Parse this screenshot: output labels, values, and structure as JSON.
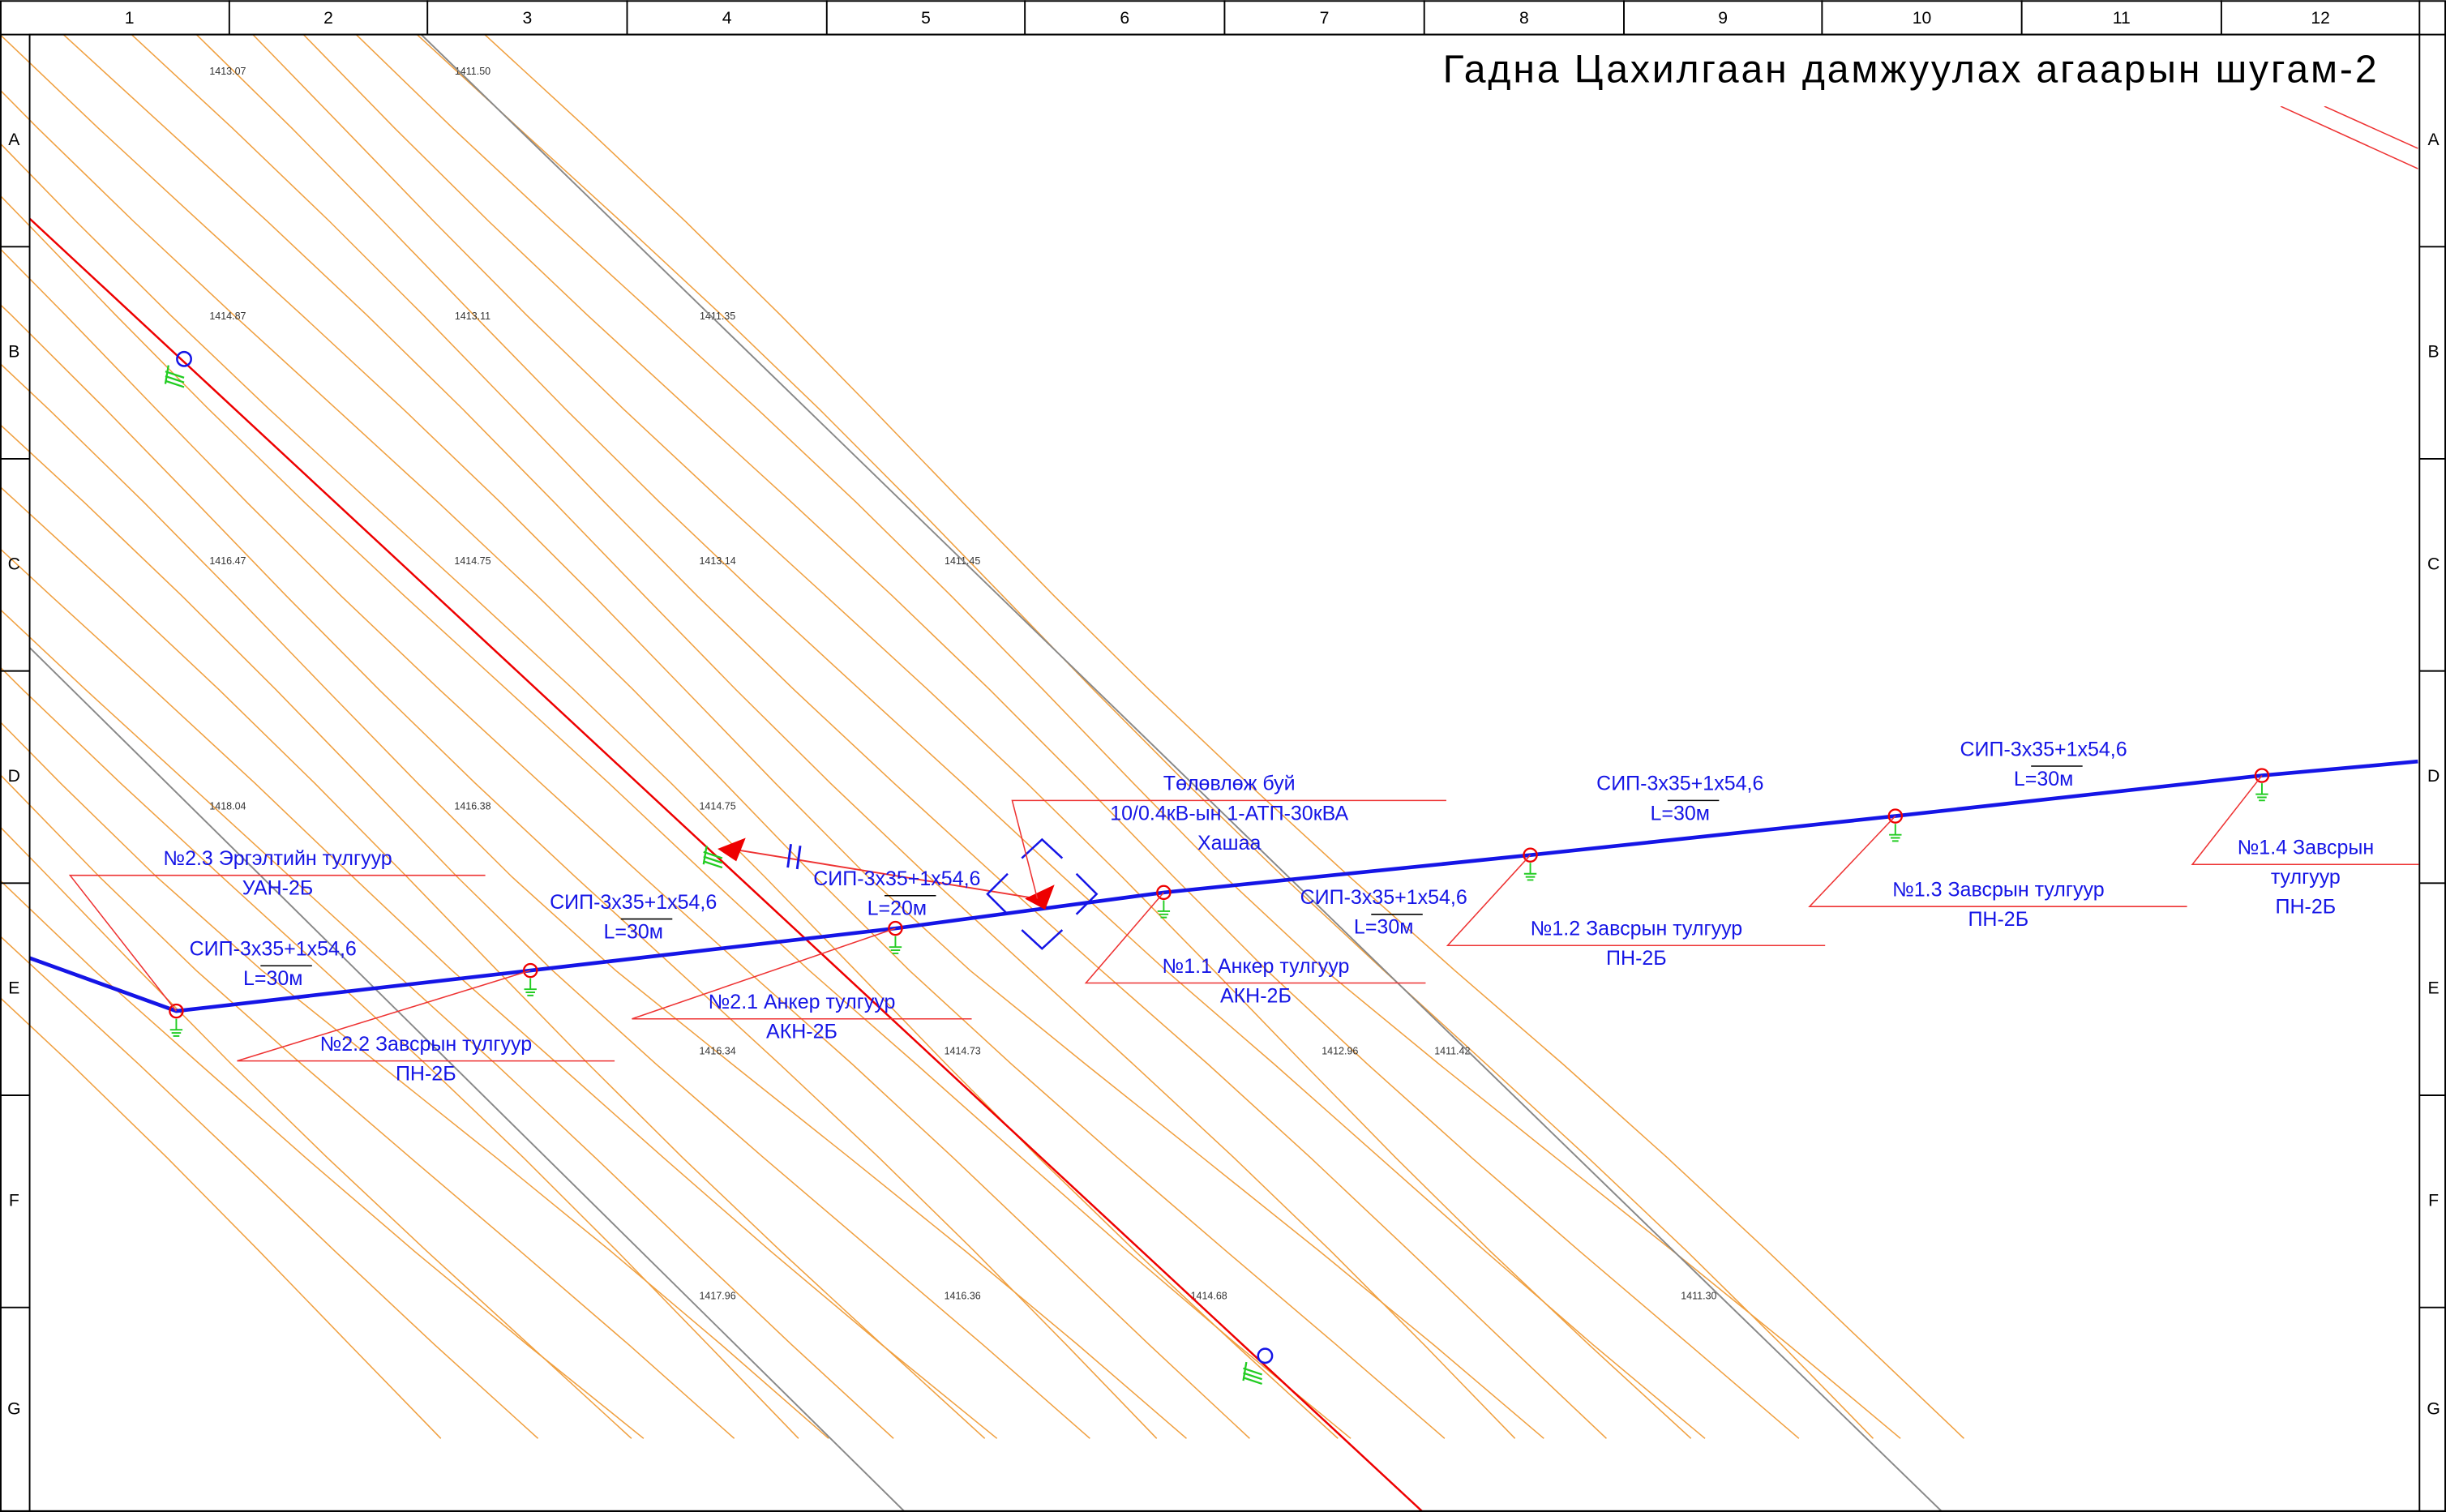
{
  "title": "Гадна Цахилгаан дамжуулах агаарын шугам-2",
  "columns": [
    "1",
    "2",
    "3",
    "4",
    "5",
    "6",
    "7",
    "8",
    "9",
    "10",
    "11",
    "12"
  ],
  "rows": [
    "A",
    "B",
    "C",
    "D",
    "E",
    "F",
    "G"
  ],
  "elevations": [
    "1413.07",
    "1411.50",
    "1414.87",
    "1413.11",
    "1411.35",
    "1416.47",
    "1414.75",
    "1413.14",
    "1411.45",
    "1418.04",
    "1416.38",
    "1414.75",
    "1416.34",
    "1414.73",
    "1412.96",
    "1411.42",
    "1417.96",
    "1416.36",
    "1414.68",
    "1411.30"
  ],
  "labels": [
    {
      "lines": [
        "№2.3 Эргэлтийн тулгуур",
        "УАН-2Б"
      ]
    },
    {
      "lines": [
        "СИП-3х35+1х54,6",
        "L=30м"
      ]
    },
    {
      "lines": [
        "№2.2 Завсрын тулгуур",
        "ПН-2Б"
      ]
    },
    {
      "lines": [
        "СИП-3х35+1х54,6",
        "L=30м"
      ]
    },
    {
      "lines": [
        "№2.1 Анкер тулгуур",
        "АКН-2Б"
      ]
    },
    {
      "lines": [
        "СИП-3х35+1х54,6",
        "L=20м"
      ]
    },
    {
      "lines": [
        "Төлөвлөж буй",
        "10/0.4кВ-ын 1-АТП-30кВА",
        "Хашаа"
      ]
    },
    {
      "lines": [
        "№1.1 Анкер тулгуур",
        "АКН-2Б"
      ]
    },
    {
      "lines": [
        "СИП-3х35+1х54,6",
        "L=30м"
      ]
    },
    {
      "lines": [
        "№1.2 Завсрын тулгуур",
        "ПН-2Б"
      ]
    },
    {
      "lines": [
        "СИП-3х35+1х54,6",
        "L=30м"
      ]
    },
    {
      "lines": [
        "№1.3 Завсрын тулгуур",
        "ПН-2Б"
      ]
    },
    {
      "lines": [
        "СИП-3х35+1х54,6",
        "L=30м"
      ]
    },
    {
      "lines": [
        "№1.4 Завсрын",
        "тулгуур",
        "ПН-2Б"
      ]
    }
  ]
}
